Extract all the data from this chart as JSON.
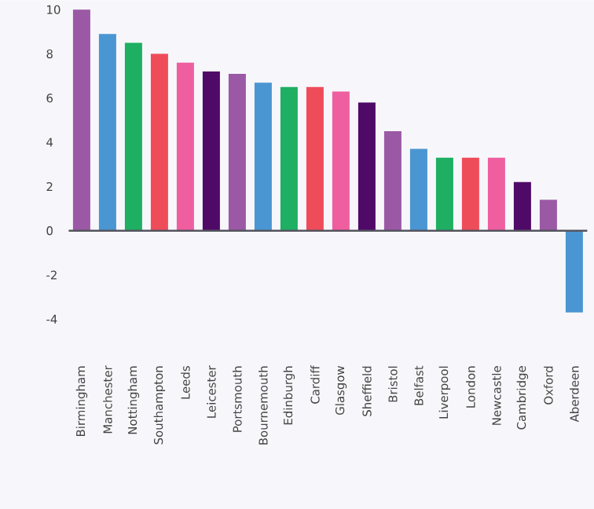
{
  "chart_data": {
    "type": "bar",
    "categories": [
      "Birmingham",
      "Manchester",
      "Nottingham",
      "Southampton",
      "Leeds",
      "Leicester",
      "Portsmouth",
      "Bournemouth",
      "Edinburgh",
      "Cardiff",
      "Glasgow",
      "Sheffield",
      "Bristol",
      "Belfast",
      "Liverpool",
      "London",
      "Newcastle",
      "Cambridge",
      "Oxford",
      "Aberdeen"
    ],
    "values": [
      10.0,
      8.9,
      8.5,
      8.0,
      7.6,
      7.2,
      7.1,
      6.7,
      6.5,
      6.5,
      6.3,
      5.8,
      4.5,
      3.7,
      3.3,
      3.3,
      3.3,
      2.2,
      1.4,
      -3.7
    ],
    "colors": [
      "#9b59a5",
      "#4a96d2",
      "#1eaf62",
      "#ef4c5a",
      "#ef5fa0",
      "#4f0a68",
      "#9b59a5",
      "#4a96d2",
      "#1eaf62",
      "#ef4c5a",
      "#ef5fa0",
      "#4f0a68",
      "#9b59a5",
      "#4a96d2",
      "#1eaf62",
      "#ef4c5a",
      "#ef5fa0",
      "#4f0a68",
      "#9b59a5",
      "#4a96d2"
    ],
    "ylim": [
      -4,
      10
    ],
    "yticks": [
      -4,
      -2,
      0,
      2,
      4,
      6,
      8,
      10
    ]
  }
}
